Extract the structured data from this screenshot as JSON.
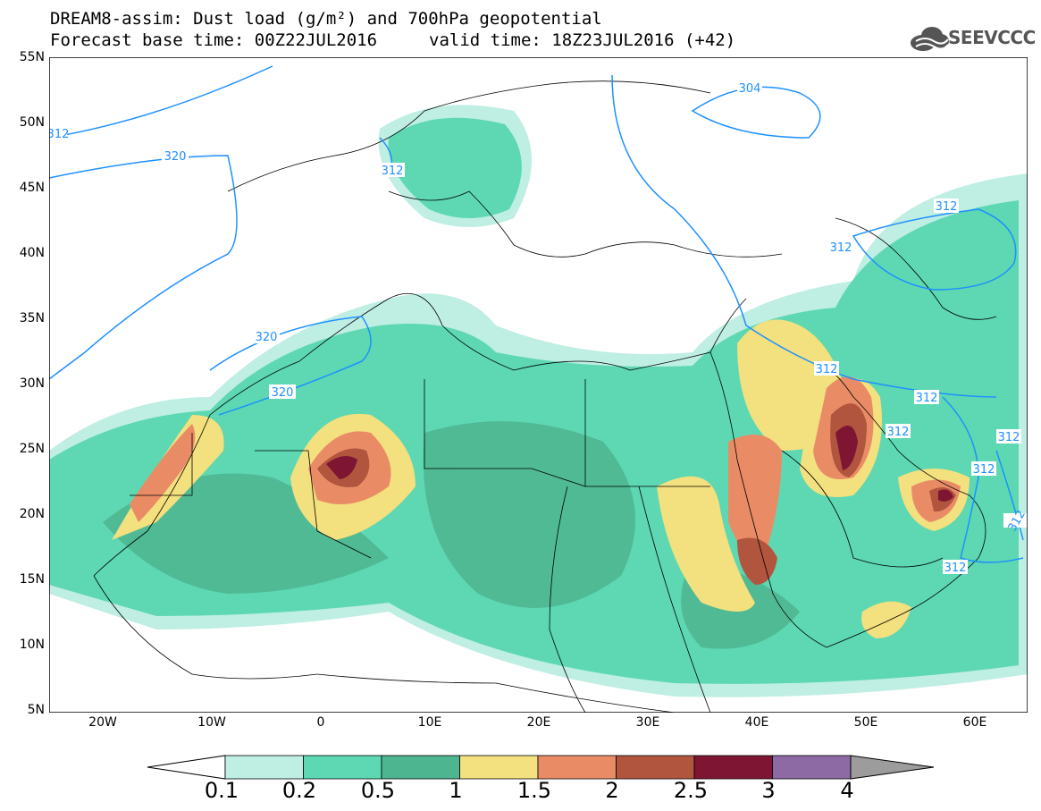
{
  "title_line1": "DREAM8-assim: Dust load (g/m²) and 700hPa geopotential",
  "title_line2": "Forecast base time: 00Z22JUL2016",
  "valid_time": "valid time: 18Z23JUL2016 (+42)",
  "logo_text": "SEEVCCC",
  "lat_labels": [
    "55N",
    "50N",
    "45N",
    "40N",
    "35N",
    "30N",
    "25N",
    "20N",
    "15N",
    "10N",
    "5N"
  ],
  "lon_labels": [
    "20W",
    "10W",
    "0",
    "10E",
    "20E",
    "30E",
    "40E",
    "50E",
    "60E"
  ],
  "contour_labels": [
    "304",
    "312",
    "320",
    "312",
    "312",
    "312",
    "320",
    "320",
    "312",
    "312",
    "312",
    "312",
    "312",
    "312",
    "312"
  ],
  "colorbar": {
    "labels": [
      "0.1",
      "0.2",
      "0.5",
      "1",
      "1.5",
      "2",
      "2.5",
      "3",
      "4"
    ],
    "colors": [
      "#bfeee3",
      "#5dd8b2",
      "#4db58f",
      "#f3e07e",
      "#e98c66",
      "#b1553f",
      "#7e1532",
      "#8d6aa3",
      "#9c9c9c"
    ]
  },
  "colors": {
    "contour": "#1e90ff",
    "border": "#000000"
  }
}
